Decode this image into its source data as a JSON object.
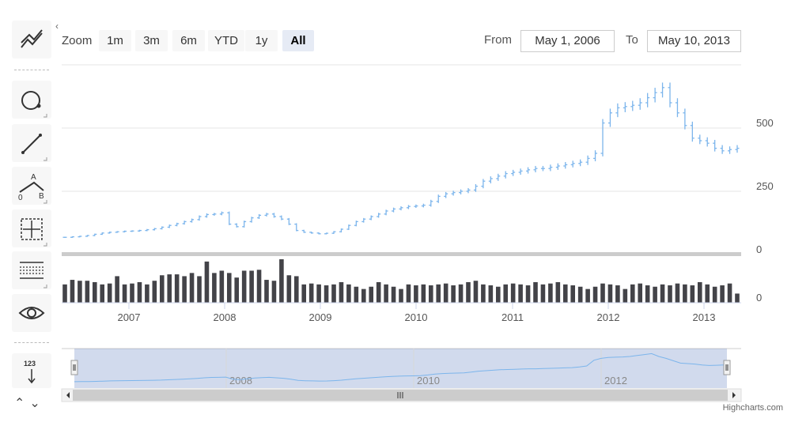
{
  "toolbar": {
    "items": [
      {
        "icon": "indicators-icon"
      },
      {
        "icon": "circle-annotation-icon"
      },
      {
        "icon": "line-segment-icon"
      },
      {
        "icon": "elliott-wave-icon",
        "labels": [
          "A",
          "0",
          "B"
        ]
      },
      {
        "icon": "measure-xy-icon"
      },
      {
        "icon": "horizontal-lines-icon"
      },
      {
        "icon": "toggle-annotations-icon"
      },
      {
        "icon": "current-price-indicator-icon",
        "label": "123"
      }
    ],
    "collapse_glyph": "‹",
    "scroll_up_glyph": "⌃",
    "scroll_down_glyph": "⌄"
  },
  "range_selector": {
    "zoom_label": "Zoom",
    "buttons": [
      "1m",
      "3m",
      "6m",
      "YTD",
      "1y",
      "All"
    ],
    "selected": "All",
    "from_label": "From",
    "from_value": "May 1, 2006",
    "to_label": "To",
    "to_value": "May 10, 2013"
  },
  "credits": "Highcharts.com",
  "colors": {
    "ohlc": "#7cb5ec",
    "volume": "#434348",
    "navigator_mask": "rgba(102,133,194,0.3)",
    "grid": "#e6e6e6"
  },
  "chart_data": {
    "type": "ohlc",
    "price_axis": {
      "ticks": [
        0,
        250,
        500
      ],
      "range": [
        0,
        750
      ]
    },
    "volume_axis": {
      "ticks": [
        0
      ]
    },
    "x_axis": {
      "ticks": [
        "2007",
        "2008",
        "2009",
        "2010",
        "2011",
        "2012",
        "2013"
      ]
    },
    "navigator_labels": [
      "2008",
      "2010",
      "2012"
    ],
    "price_close": [
      68,
      70,
      72,
      75,
      80,
      85,
      88,
      90,
      92,
      93,
      95,
      98,
      102,
      108,
      115,
      122,
      130,
      138,
      150,
      158,
      160,
      165,
      120,
      110,
      130,
      145,
      155,
      160,
      150,
      140,
      120,
      95,
      88,
      85,
      82,
      84,
      90,
      100,
      115,
      130,
      140,
      150,
      160,
      172,
      180,
      185,
      190,
      192,
      195,
      210,
      230,
      240,
      245,
      250,
      255,
      270,
      290,
      300,
      310,
      320,
      325,
      330,
      335,
      340,
      340,
      345,
      350,
      355,
      360,
      365,
      380,
      400,
      520,
      560,
      580,
      585,
      590,
      600,
      620,
      640,
      660,
      600,
      560,
      510,
      460,
      450,
      440,
      420,
      410,
      415,
      420
    ],
    "volume": [
      40,
      50,
      48,
      48,
      45,
      40,
      42,
      58,
      40,
      42,
      45,
      40,
      48,
      60,
      62,
      62,
      58,
      65,
      58,
      90,
      65,
      70,
      65,
      55,
      70,
      70,
      72,
      50,
      48,
      95,
      60,
      58,
      40,
      42,
      40,
      38,
      40,
      45,
      40,
      35,
      30,
      35,
      45,
      40,
      35,
      30,
      40,
      38,
      40,
      38,
      40,
      42,
      38,
      40,
      45,
      48,
      40,
      38,
      35,
      40,
      42,
      40,
      38,
      45,
      40,
      42,
      45,
      40,
      38,
      35,
      30,
      35,
      42,
      40,
      38,
      30,
      40,
      42,
      38,
      35,
      40,
      38,
      42,
      40,
      38,
      45,
      40,
      35,
      38,
      42,
      20
    ]
  }
}
